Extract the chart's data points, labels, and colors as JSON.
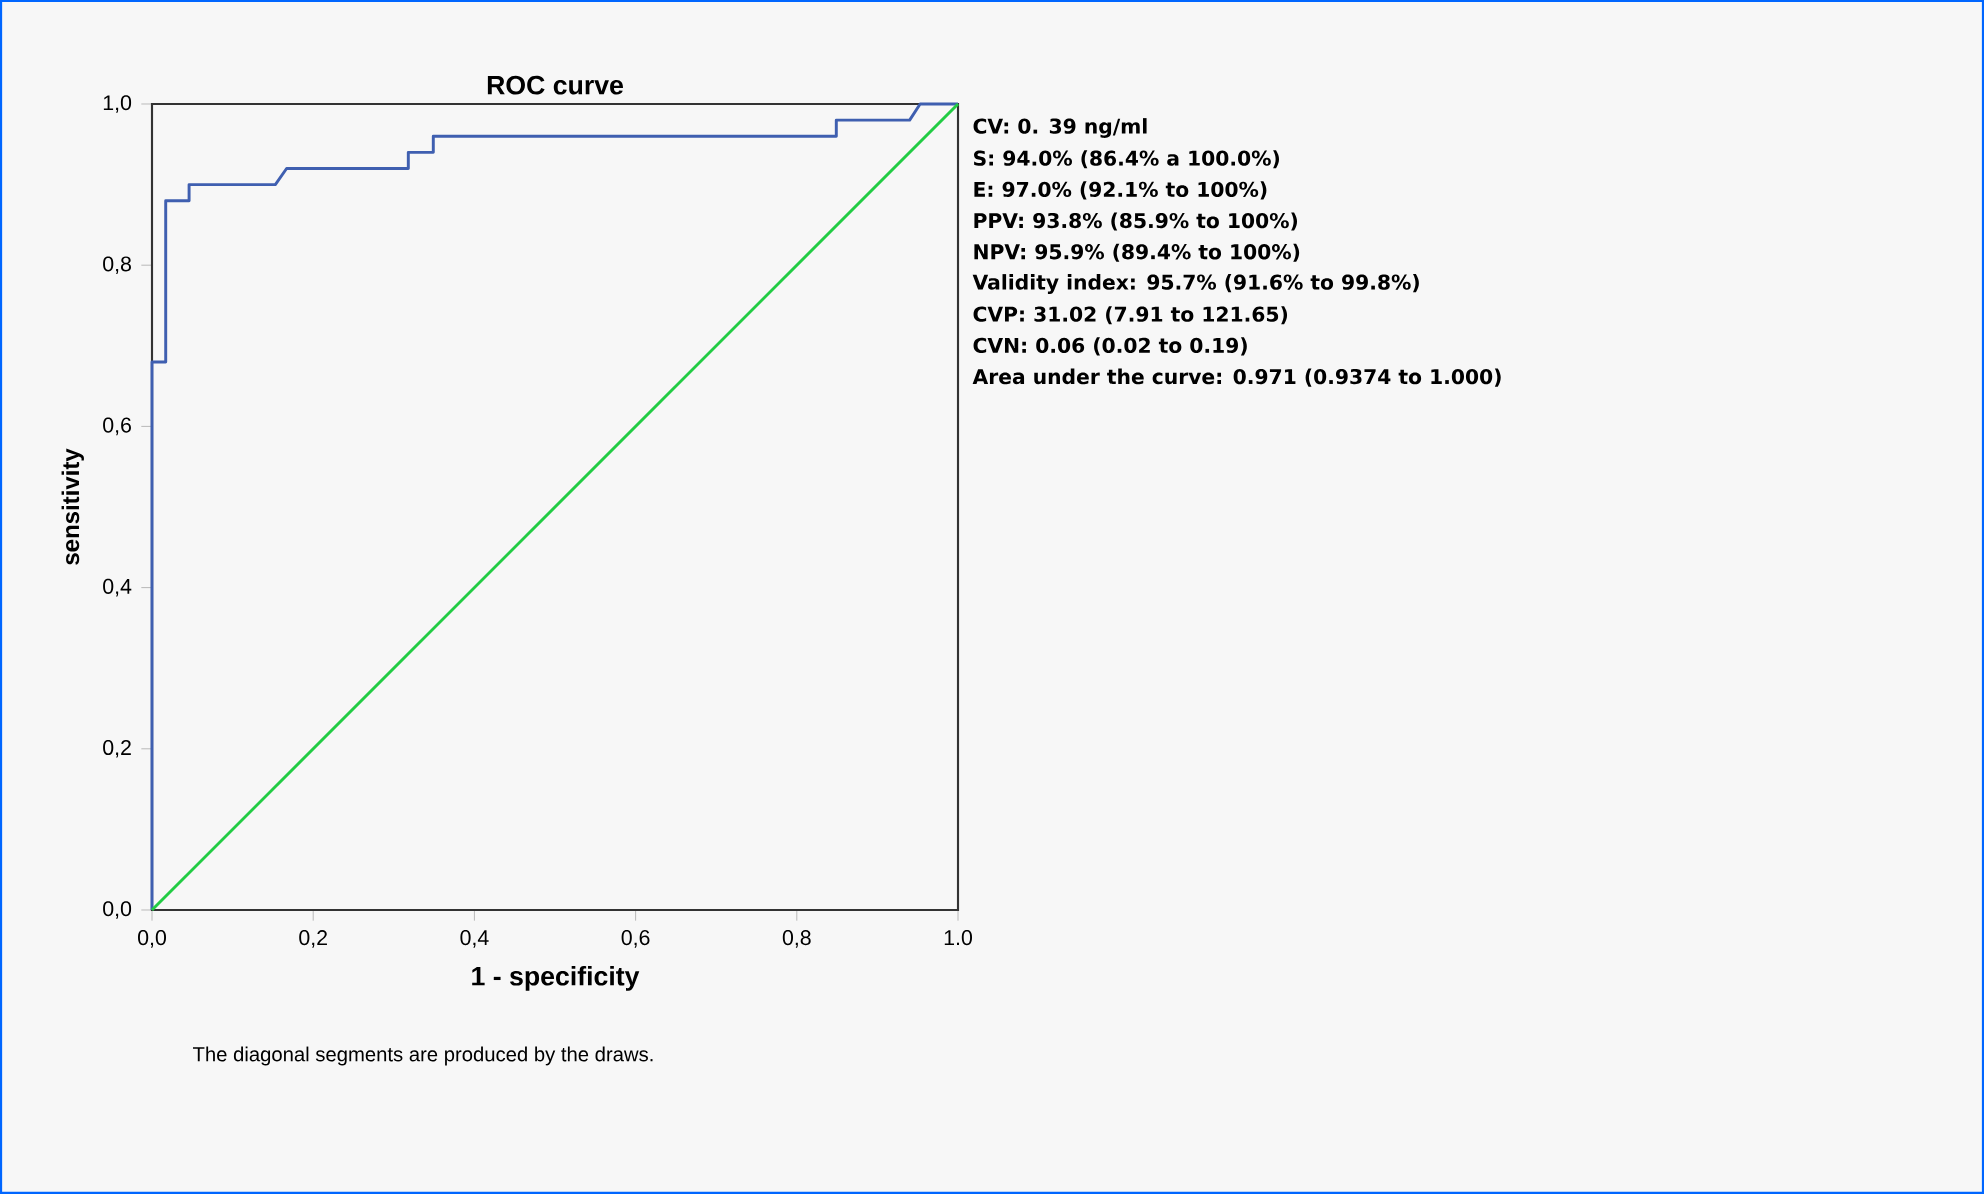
{
  "chart_data": {
    "type": "line",
    "title": "ROC curve",
    "xlabel": "1 - specificity",
    "ylabel": "sensitivity",
    "xlim": [
      0,
      1
    ],
    "ylim": [
      0,
      1
    ],
    "xticks": [
      {
        "value": 0,
        "label": "0,0"
      },
      {
        "value": 0.2,
        "label": "0,2"
      },
      {
        "value": 0.4,
        "label": "0,4"
      },
      {
        "value": 0.6,
        "label": "0,6"
      },
      {
        "value": 0.8,
        "label": "0,8"
      },
      {
        "value": 1,
        "label": "1.0"
      }
    ],
    "yticks": [
      {
        "value": 0,
        "label": "0,0"
      },
      {
        "value": 0.2,
        "label": "0,2"
      },
      {
        "value": 0.4,
        "label": "0,4"
      },
      {
        "value": 0.6,
        "label": "0,6"
      },
      {
        "value": 0.8,
        "label": "0,8"
      },
      {
        "value": 1,
        "label": "1,0"
      }
    ],
    "series": [
      {
        "color": "#3f5fb0",
        "x": [
          0,
          0,
          0.017,
          0.017,
          0.046,
          0.046,
          0.153,
          0.167,
          0.318,
          0.318,
          0.349,
          0.349,
          0.849,
          0.849,
          0.94,
          0.953,
          1
        ],
        "values": [
          0,
          0.68,
          0.68,
          0.88,
          0.88,
          0.9,
          0.9,
          0.92,
          0.92,
          0.94,
          0.94,
          0.96,
          0.96,
          0.98,
          0.98,
          1,
          1
        ]
      },
      {
        "color": "#22cc44",
        "x": [
          0,
          1
        ],
        "values": [
          0,
          1
        ]
      }
    ],
    "annotations": [
      "CV: 0. 39 ng/ml",
      "S: 94.0% (86.4% a 100.0%)",
      "E: 97.0% (92.1% to 100%)",
      "PPV: 93.8% (85.9% to 100%)",
      "NPV: 95.9% (89.4% to 100%)",
      "Validity index: 95.7% (91.6% to 99.8%)",
      "CVP: 31.02 (7.91 to 121.65)",
      "CVN: 0.06 (0.02 to 0.19)",
      "Area under the curve: 0.971 (0.9374 to 1.000)",
      "The diagonal segments are produced by the draws."
    ]
  }
}
